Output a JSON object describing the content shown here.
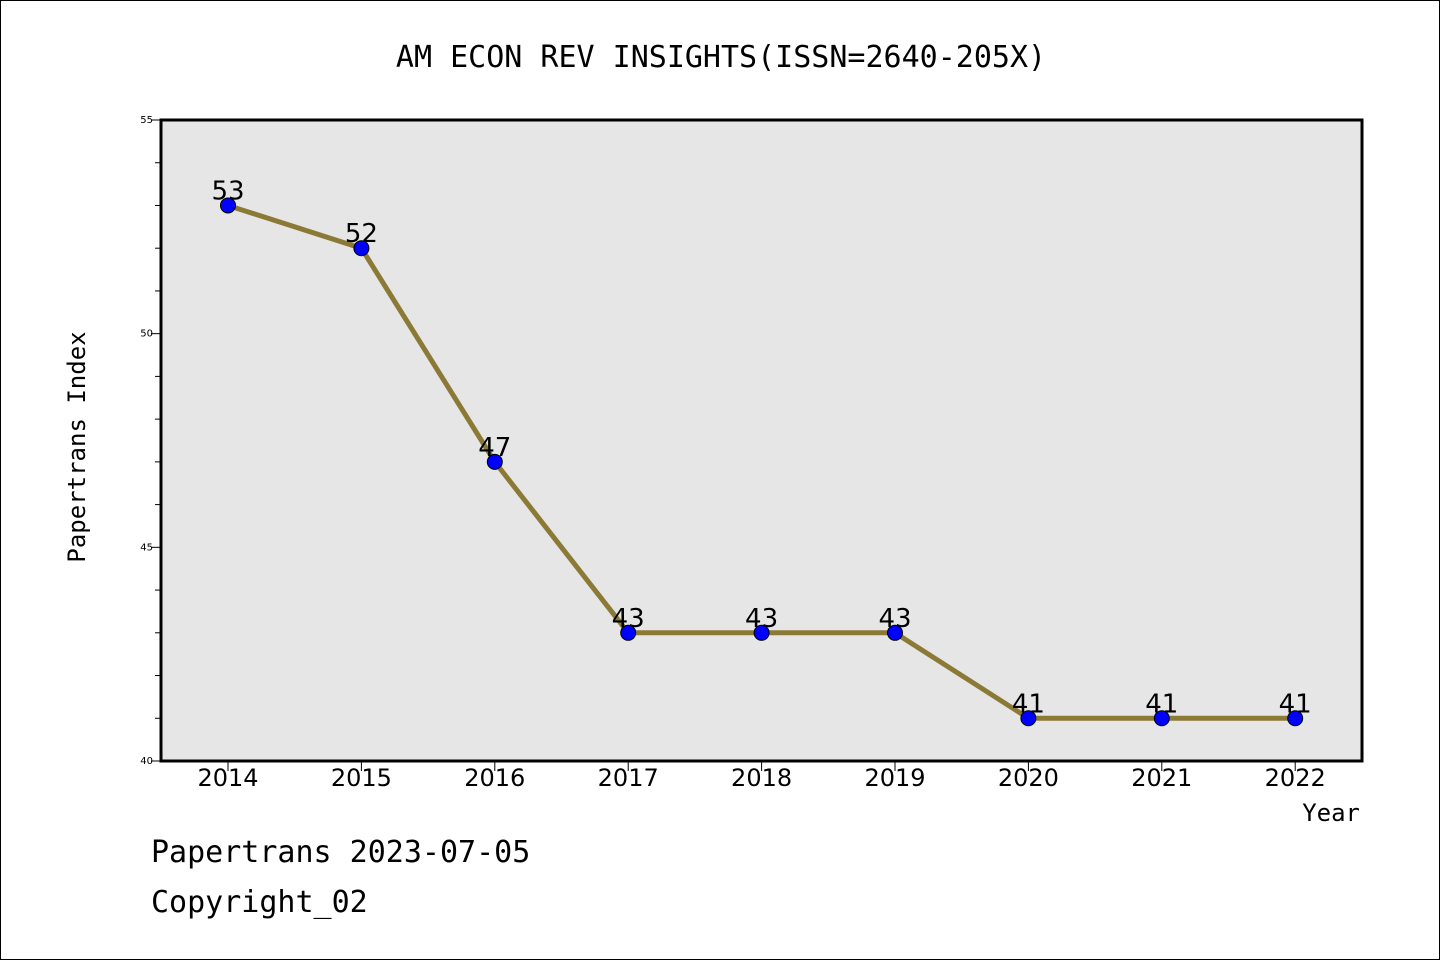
{
  "chart_data": {
    "type": "line",
    "title": "AM ECON REV INSIGHTS(ISSN=2640-205X)",
    "xlabel": "Year",
    "ylabel": "Papertrans Index",
    "categories": [
      "2014",
      "2015",
      "2016",
      "2017",
      "2018",
      "2019",
      "2020",
      "2021",
      "2022"
    ],
    "series": [
      {
        "values": [
          53,
          52,
          47,
          43,
          43,
          43,
          41,
          41,
          41
        ]
      }
    ],
    "ylim": [
      40,
      55
    ],
    "yticks": [
      "40",
      "45",
      "50",
      "55"
    ],
    "grid": false,
    "line_color": "#8b7a35",
    "marker_color": "#0000ff",
    "plot_background": "#e6e6e6"
  },
  "footer": {
    "line1": "Papertrans 2023-07-05",
    "line2": "Copyright_02"
  }
}
